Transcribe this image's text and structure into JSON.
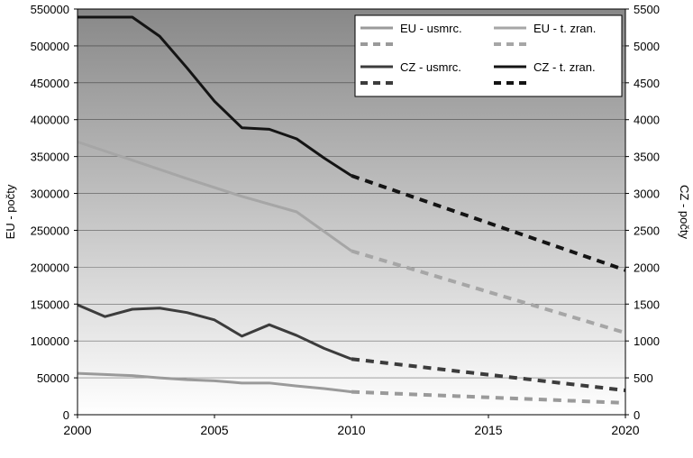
{
  "chart_data": {
    "type": "line",
    "x": [
      2000,
      2001,
      2002,
      2003,
      2004,
      2005,
      2006,
      2007,
      2008,
      2009,
      2010,
      2011,
      2012,
      2013,
      2014,
      2015,
      2016,
      2017,
      2018,
      2019,
      2020
    ],
    "xticks": [
      "2000",
      "2005",
      "2010",
      "2015",
      "2020"
    ],
    "xlim": [
      2000,
      2020
    ],
    "ylabel_left": "EU - počty",
    "ylabel_right": "CZ - počty",
    "ylim_left": [
      0,
      550000
    ],
    "ylim_right": [
      0,
      5500
    ],
    "yticks_left": [
      "0",
      "50000",
      "100000",
      "150000",
      "200000",
      "250000",
      "300000",
      "350000",
      "400000",
      "450000",
      "500000",
      "550000"
    ],
    "yticks_right": [
      "0",
      "500",
      "1000",
      "1500",
      "2000",
      "2500",
      "3000",
      "3500",
      "4000",
      "4500",
      "5000",
      "5500"
    ],
    "grid": true,
    "legend_position": "top-right",
    "series": [
      {
        "name": "EU - usmrc.",
        "axis": "left",
        "color": "#9a9a9a",
        "actual": {
          "x": [
            2000,
            2001,
            2002,
            2003,
            2004,
            2005,
            2006,
            2007,
            2008,
            2009,
            2010
          ],
          "y": [
            56000,
            54500,
            53000,
            50000,
            47500,
            46000,
            43000,
            43000,
            39000,
            35500,
            31000
          ]
        },
        "projection": {
          "x": [
            2010,
            2020
          ],
          "y": [
            31000,
            16000
          ]
        }
      },
      {
        "name": "EU - t. zran.",
        "axis": "left",
        "color": "#a6a6a6",
        "actual": {
          "x": [
            2000,
            2002,
            2004,
            2006,
            2008,
            2010
          ],
          "y": [
            370000,
            345000,
            320000,
            296000,
            275000,
            222000
          ]
        },
        "projection": {
          "x": [
            2010,
            2020
          ],
          "y": [
            222000,
            111000
          ]
        }
      },
      {
        "name": "CZ - usmrc.",
        "axis": "right",
        "color": "#3c3c3c",
        "actual": {
          "x": [
            2000,
            2001,
            2002,
            2003,
            2004,
            2005,
            2006,
            2007,
            2008,
            2009,
            2010
          ],
          "y": [
            1490,
            1330,
            1430,
            1445,
            1385,
            1285,
            1065,
            1220,
            1075,
            900,
            755
          ]
        },
        "projection": {
          "x": [
            2010,
            2020
          ],
          "y": [
            755,
            330
          ]
        }
      },
      {
        "name": "CZ - t. zran.",
        "axis": "right",
        "color": "#141414",
        "actual": {
          "x": [
            2000,
            2001,
            2002,
            2003,
            2004,
            2005,
            2006,
            2007,
            2008,
            2009,
            2010
          ],
          "y": [
            5390,
            5390,
            5390,
            5130,
            4700,
            4250,
            3890,
            3870,
            3740,
            3480,
            3240
          ]
        },
        "projection": {
          "x": [
            2010,
            2020
          ],
          "y": [
            3240,
            1960
          ]
        }
      }
    ]
  }
}
